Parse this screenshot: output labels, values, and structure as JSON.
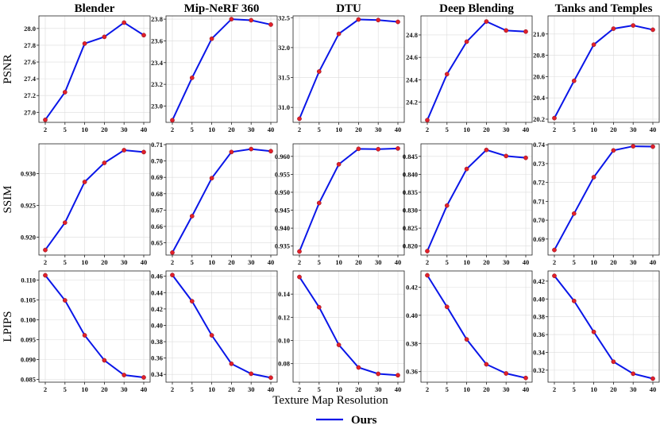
{
  "chart_data": {
    "type": "line",
    "x": [
      2,
      5,
      10,
      20,
      30,
      40
    ],
    "x_tick_labels": [
      "2",
      "5",
      "10",
      "20",
      "30",
      "40"
    ],
    "xlabel": "Texture Map Resolution",
    "datasets": [
      "Blender",
      "Mip-NeRF 360",
      "DTU",
      "Deep Blending",
      "Tanks and Temples"
    ],
    "metrics": [
      "PSNR",
      "SSIM",
      "LPIPS"
    ],
    "legend": [
      {
        "name": "Ours",
        "color": "#0a16e8",
        "marker_color": "#e0202a"
      }
    ],
    "legend_position": "bottom-center",
    "grid": true,
    "panels": [
      {
        "metric": "PSNR",
        "dataset": "Blender",
        "ylim": [
          26.88,
          28.15
        ],
        "yticks": [
          27.0,
          27.2,
          27.4,
          27.6,
          27.8,
          28.0
        ],
        "ytick_labels": [
          "27.0",
          "27.2",
          "27.4",
          "27.6",
          "27.8",
          "28.0"
        ],
        "values": [
          26.91,
          27.24,
          27.82,
          27.9,
          28.07,
          27.92
        ]
      },
      {
        "metric": "PSNR",
        "dataset": "Mip-NeRF 360",
        "ylim": [
          22.85,
          23.83
        ],
        "yticks": [
          23.0,
          23.2,
          23.4,
          23.6,
          23.8
        ],
        "ytick_labels": [
          "23.0",
          "23.2",
          "23.4",
          "23.6",
          "23.8"
        ],
        "values": [
          22.87,
          23.26,
          23.62,
          23.8,
          23.79,
          23.75
        ]
      },
      {
        "metric": "PSNR",
        "dataset": "DTU",
        "ylim": [
          30.75,
          32.53
        ],
        "yticks": [
          31.0,
          31.5,
          32.0,
          32.5
        ],
        "ytick_labels": [
          "31.0",
          "31.5",
          "32.0",
          "32.5"
        ],
        "values": [
          30.81,
          31.6,
          32.23,
          32.47,
          32.46,
          32.43
        ]
      },
      {
        "metric": "PSNR",
        "dataset": "Deep Blending",
        "ylim": [
          24.02,
          24.97
        ],
        "yticks": [
          24.2,
          24.4,
          24.6,
          24.8
        ],
        "ytick_labels": [
          "24.2",
          "24.4",
          "24.6",
          "24.8"
        ],
        "values": [
          24.04,
          24.45,
          24.74,
          24.92,
          24.84,
          24.83
        ]
      },
      {
        "metric": "PSNR",
        "dataset": "Tanks and Temples",
        "ylim": [
          20.17,
          21.17
        ],
        "yticks": [
          20.2,
          20.4,
          20.6,
          20.8,
          21.0
        ],
        "ytick_labels": [
          "20.2",
          "20.4",
          "20.6",
          "20.8",
          "21.0"
        ],
        "values": [
          20.21,
          20.56,
          20.9,
          21.05,
          21.08,
          21.04
        ]
      },
      {
        "metric": "SSIM",
        "dataset": "Blender",
        "ylim": [
          0.9172,
          0.9347
        ],
        "yticks": [
          0.92,
          0.925,
          0.93
        ],
        "ytick_labels": [
          "0.920",
          "0.925",
          "0.930"
        ],
        "values": [
          0.918,
          0.9223,
          0.9287,
          0.9317,
          0.9337,
          0.9334
        ]
      },
      {
        "metric": "SSIM",
        "dataset": "Mip-NeRF 360",
        "ylim": [
          0.6425,
          0.7105
        ],
        "yticks": [
          0.65,
          0.66,
          0.67,
          0.68,
          0.69,
          0.7,
          0.71
        ],
        "ytick_labels": [
          "0.65",
          "0.66",
          "0.67",
          "0.68",
          "0.69",
          "0.70",
          "0.71"
        ],
        "values": [
          0.644,
          0.6663,
          0.6895,
          0.7055,
          0.7073,
          0.706
        ]
      },
      {
        "metric": "SSIM",
        "dataset": "DTU",
        "ylim": [
          0.9325,
          0.9635
        ],
        "yticks": [
          0.935,
          0.94,
          0.945,
          0.95,
          0.955,
          0.96
        ],
        "ytick_labels": [
          "0.935",
          "0.940",
          "0.945",
          "0.950",
          "0.955",
          "0.960"
        ],
        "values": [
          0.9335,
          0.947,
          0.9578,
          0.9621,
          0.962,
          0.9622
        ]
      },
      {
        "metric": "SSIM",
        "dataset": "Deep Blending",
        "ylim": [
          0.8175,
          0.8485
        ],
        "yticks": [
          0.82,
          0.825,
          0.83,
          0.835,
          0.84,
          0.845
        ],
        "ytick_labels": [
          "0.820",
          "0.825",
          "0.830",
          "0.835",
          "0.840",
          "0.845"
        ],
        "values": [
          0.8186,
          0.8313,
          0.8415,
          0.8468,
          0.8451,
          0.8446
        ]
      },
      {
        "metric": "SSIM",
        "dataset": "Tanks and Temples",
        "ylim": [
          0.6815,
          0.7405
        ],
        "yticks": [
          0.69,
          0.7,
          0.71,
          0.72,
          0.73,
          0.74
        ],
        "ytick_labels": [
          "0.69",
          "0.70",
          "0.71",
          "0.72",
          "0.73",
          "0.74"
        ],
        "values": [
          0.6842,
          0.7035,
          0.7228,
          0.737,
          0.7392,
          0.739
        ]
      },
      {
        "metric": "LPIPS",
        "dataset": "Blender",
        "ylim": [
          0.0843,
          0.1123
        ],
        "yticks": [
          0.085,
          0.09,
          0.095,
          0.1,
          0.105,
          0.11
        ],
        "ytick_labels": [
          "0.085",
          "0.090",
          "0.095",
          "0.100",
          "0.105",
          "0.110"
        ],
        "values": [
          0.1112,
          0.1049,
          0.0961,
          0.0898,
          0.0861,
          0.0855
        ]
      },
      {
        "metric": "LPIPS",
        "dataset": "Mip-NeRF 360",
        "ylim": [
          0.3305,
          0.4665
        ],
        "yticks": [
          0.34,
          0.36,
          0.38,
          0.4,
          0.42,
          0.44,
          0.46
        ],
        "ytick_labels": [
          "0.34",
          "0.36",
          "0.38",
          "0.40",
          "0.42",
          "0.44",
          "0.46"
        ],
        "values": [
          0.4615,
          0.4295,
          0.3878,
          0.353,
          0.3408,
          0.336
        ]
      },
      {
        "metric": "LPIPS",
        "dataset": "DTU",
        "ylim": [
          0.064,
          0.16
        ],
        "yticks": [
          0.08,
          0.1,
          0.12,
          0.14
        ],
        "ytick_labels": [
          "0.08",
          "0.10",
          "0.12",
          "0.14"
        ],
        "values": [
          0.1548,
          0.1287,
          0.0962,
          0.0767,
          0.0712,
          0.07
        ]
      },
      {
        "metric": "LPIPS",
        "dataset": "Deep Blending",
        "ylim": [
          0.3525,
          0.4315
        ],
        "yticks": [
          0.36,
          0.38,
          0.4,
          0.42
        ],
        "ytick_labels": [
          "0.36",
          "0.38",
          "0.40",
          "0.42"
        ],
        "values": [
          0.4284,
          0.406,
          0.3829,
          0.3652,
          0.3587,
          0.3555
        ]
      },
      {
        "metric": "LPIPS",
        "dataset": "Tanks and Temples",
        "ylim": [
          0.3065,
          0.4315
        ],
        "yticks": [
          0.32,
          0.34,
          0.36,
          0.38,
          0.4,
          0.42
        ],
        "ytick_labels": [
          "0.32",
          "0.34",
          "0.36",
          "0.38",
          "0.40",
          "0.42"
        ],
        "values": [
          0.426,
          0.3978,
          0.363,
          0.3295,
          0.316,
          0.3105
        ]
      }
    ]
  }
}
